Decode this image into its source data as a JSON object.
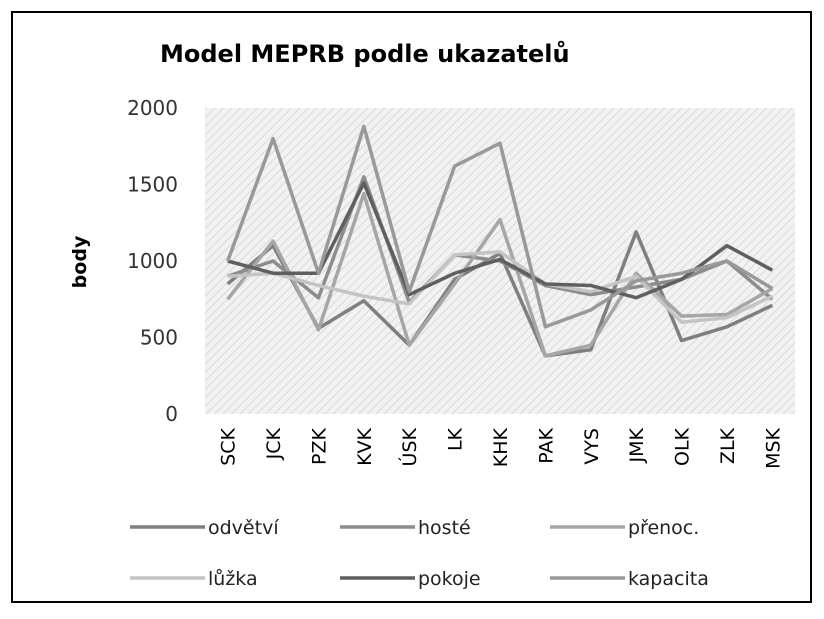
{
  "chart_data": {
    "type": "line",
    "title": "Model MEPRB podle ukazatelů",
    "y_label": "body",
    "categories": [
      "SCK",
      "JCK",
      "PZK",
      "KVK",
      "ÚSK",
      "LK",
      "KHK",
      "PAK",
      "VYS",
      "JMK",
      "OLK",
      "ZLK",
      "MSK"
    ],
    "series": [
      {
        "name": "odvětví",
        "color": "#7f7f7f",
        "values": [
          850,
          1100,
          560,
          740,
          450,
          880,
          1050,
          380,
          420,
          1190,
          480,
          570,
          710
        ]
      },
      {
        "name": "hosté",
        "color": "#8c8c8c",
        "values": [
          900,
          1000,
          760,
          1550,
          730,
          1040,
          1000,
          840,
          780,
          830,
          880,
          1000,
          750
        ]
      },
      {
        "name": "přenoc.",
        "color": "#a6a6a6",
        "values": [
          750,
          1130,
          550,
          1440,
          450,
          850,
          1270,
          380,
          450,
          920,
          640,
          650,
          820
        ]
      },
      {
        "name": "lůžka",
        "color": "#c4c4c4",
        "values": [
          900,
          920,
          840,
          770,
          720,
          1040,
          1060,
          850,
          800,
          900,
          600,
          630,
          770
        ]
      },
      {
        "name": "pokoje",
        "color": "#5f5f5f",
        "values": [
          1000,
          920,
          920,
          1510,
          780,
          920,
          1010,
          850,
          840,
          760,
          880,
          1100,
          940
        ]
      },
      {
        "name": "kapacita",
        "color": "#999999",
        "values": [
          1000,
          1800,
          920,
          1880,
          800,
          1620,
          1770,
          570,
          680,
          870,
          920,
          1000,
          820
        ]
      }
    ],
    "ylim": [
      0,
      2000
    ],
    "yticks": [
      0,
      500,
      1000,
      1500,
      2000
    ],
    "grid": false
  }
}
